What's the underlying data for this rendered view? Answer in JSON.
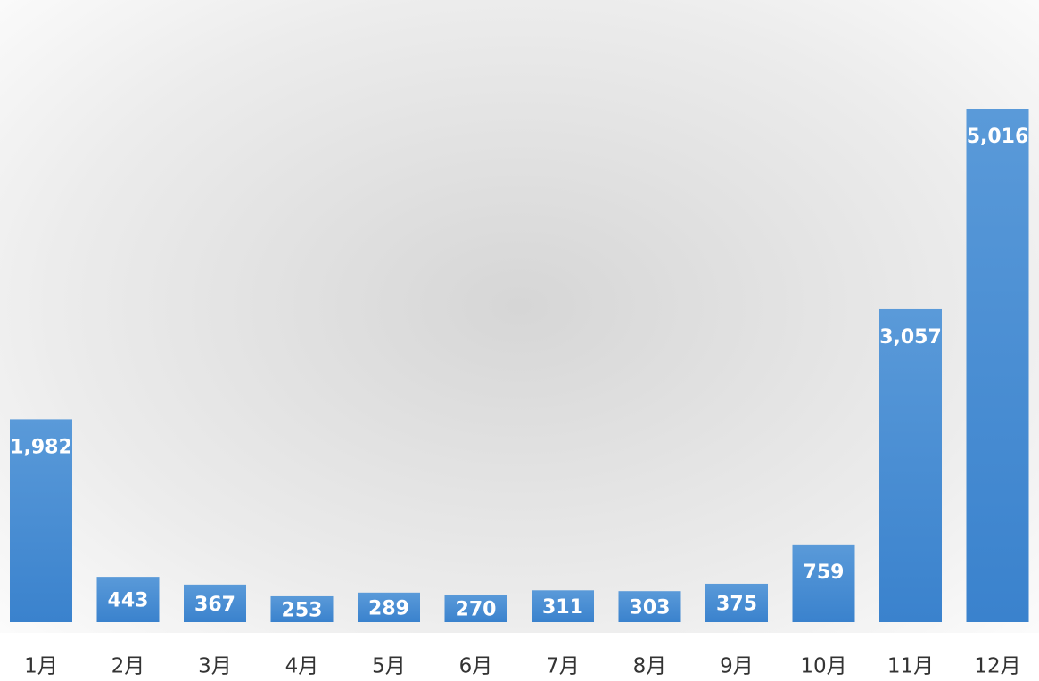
{
  "chart_data": {
    "type": "bar",
    "categories": [
      "1月",
      "2月",
      "3月",
      "4月",
      "5月",
      "6月",
      "7月",
      "8月",
      "9月",
      "10月",
      "11月",
      "12月"
    ],
    "values": [
      1982,
      443,
      367,
      253,
      289,
      270,
      311,
      303,
      375,
      759,
      3057,
      5016
    ],
    "value_labels": [
      "1,982",
      "443",
      "367",
      "253",
      "289",
      "270",
      "311",
      "303",
      "375",
      "759",
      "3,057",
      "5,016"
    ],
    "color": "#3f86cf"
  }
}
